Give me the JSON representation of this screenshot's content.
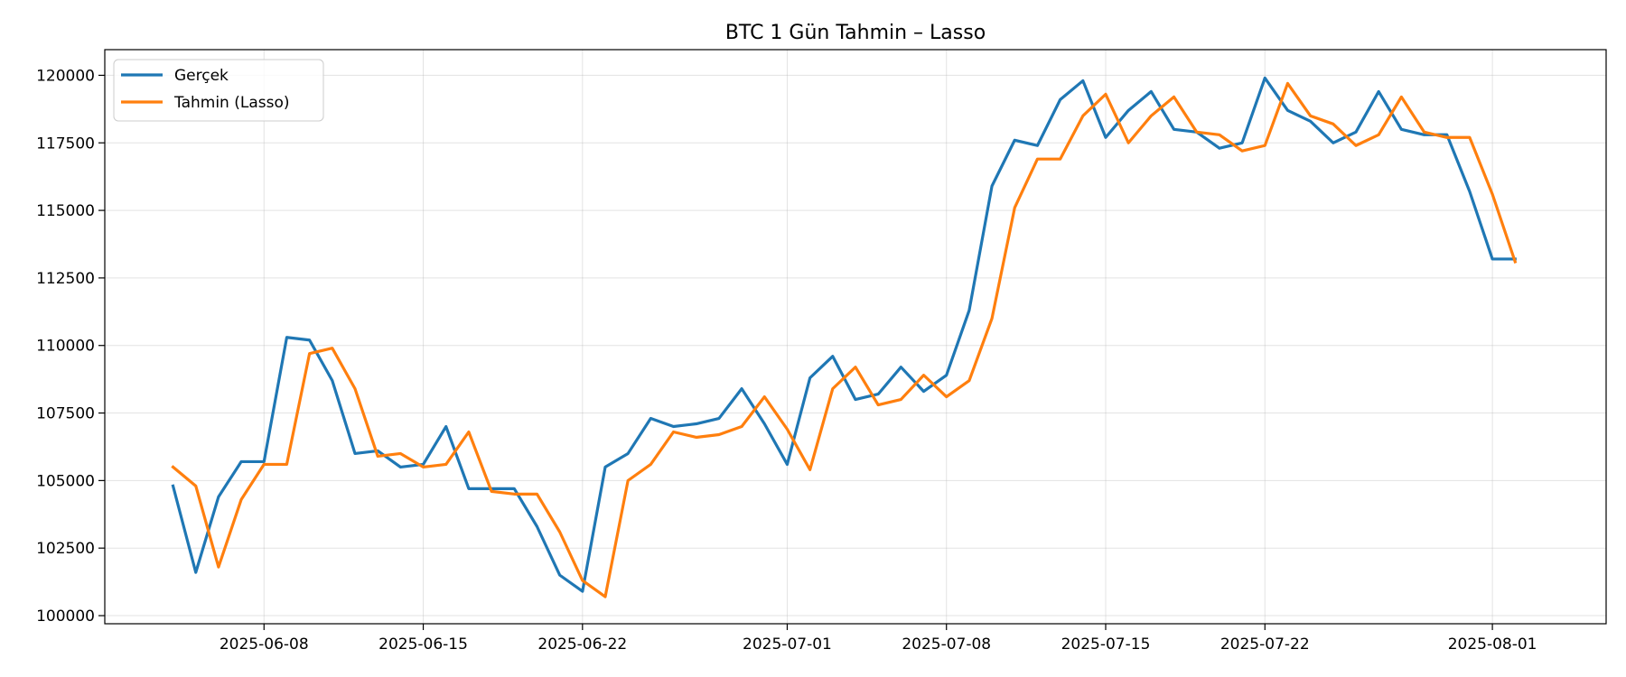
{
  "chart_data": {
    "type": "line",
    "title": "BTC 1 Gün Tahmin – Lasso",
    "xlabel": "",
    "ylabel": "",
    "x_start": "2025-06-04",
    "x": [
      "2025-06-04",
      "2025-06-05",
      "2025-06-06",
      "2025-06-07",
      "2025-06-08",
      "2025-06-09",
      "2025-06-10",
      "2025-06-11",
      "2025-06-12",
      "2025-06-13",
      "2025-06-14",
      "2025-06-15",
      "2025-06-16",
      "2025-06-17",
      "2025-06-18",
      "2025-06-19",
      "2025-06-20",
      "2025-06-21",
      "2025-06-22",
      "2025-06-23",
      "2025-06-24",
      "2025-06-25",
      "2025-06-26",
      "2025-06-27",
      "2025-06-28",
      "2025-06-29",
      "2025-06-30",
      "2025-07-01",
      "2025-07-02",
      "2025-07-03",
      "2025-07-04",
      "2025-07-05",
      "2025-07-06",
      "2025-07-07",
      "2025-07-08",
      "2025-07-09",
      "2025-07-10",
      "2025-07-11",
      "2025-07-12",
      "2025-07-13",
      "2025-07-14",
      "2025-07-15",
      "2025-07-16",
      "2025-07-17",
      "2025-07-18",
      "2025-07-19",
      "2025-07-20",
      "2025-07-21",
      "2025-07-22",
      "2025-07-23",
      "2025-07-24",
      "2025-07-25",
      "2025-07-26",
      "2025-07-27",
      "2025-07-28",
      "2025-07-29",
      "2025-07-30",
      "2025-07-31",
      "2025-08-01",
      "2025-08-02"
    ],
    "series": [
      {
        "name": "Gerçek",
        "color": "#1f77b4",
        "values": [
          104800,
          101600,
          104400,
          105700,
          105700,
          110300,
          110200,
          108700,
          106000,
          106100,
          105500,
          105600,
          107000,
          104700,
          104700,
          104700,
          103300,
          101500,
          100900,
          105500,
          106000,
          107300,
          107000,
          107100,
          107300,
          108400,
          107100,
          105600,
          108800,
          109600,
          108000,
          108200,
          109200,
          108300,
          108900,
          111300,
          115900,
          117600,
          117400,
          119100,
          119800,
          117700,
          118700,
          119400,
          118000,
          117900,
          117300,
          117500,
          119900,
          118700,
          118300,
          117500,
          117900,
          119400,
          118000,
          117800,
          117800,
          115700,
          113200,
          113200
        ]
      },
      {
        "name": "Tahmin (Lasso)",
        "color": "#ff7f0e",
        "values": [
          105500,
          104800,
          101800,
          104300,
          105600,
          105600,
          109700,
          109900,
          108400,
          105900,
          106000,
          105500,
          105600,
          106800,
          104600,
          104500,
          104500,
          103100,
          101300,
          100700,
          105000,
          105600,
          106800,
          106600,
          106700,
          107000,
          108100,
          106900,
          105400,
          108400,
          109200,
          107800,
          108000,
          108900,
          108100,
          108700,
          111000,
          115100,
          116900,
          116900,
          118500,
          119300,
          117500,
          118500,
          119200,
          117900,
          117800,
          117200,
          117400,
          119700,
          118500,
          118200,
          117400,
          117800,
          119200,
          117900,
          117700,
          117700,
          115600,
          113100
        ]
      }
    ],
    "xticks": [
      "2025-06-08",
      "2025-06-15",
      "2025-06-22",
      "2025-07-01",
      "2025-07-08",
      "2025-07-15",
      "2025-07-22",
      "2025-08-01"
    ],
    "yticks": [
      100000,
      102500,
      105000,
      107500,
      110000,
      112500,
      115000,
      117500,
      120000
    ],
    "xlim": [
      "2025-06-01",
      "2025-08-06"
    ],
    "ylim": [
      99700,
      120950
    ],
    "grid": true,
    "legend": "top-left"
  }
}
